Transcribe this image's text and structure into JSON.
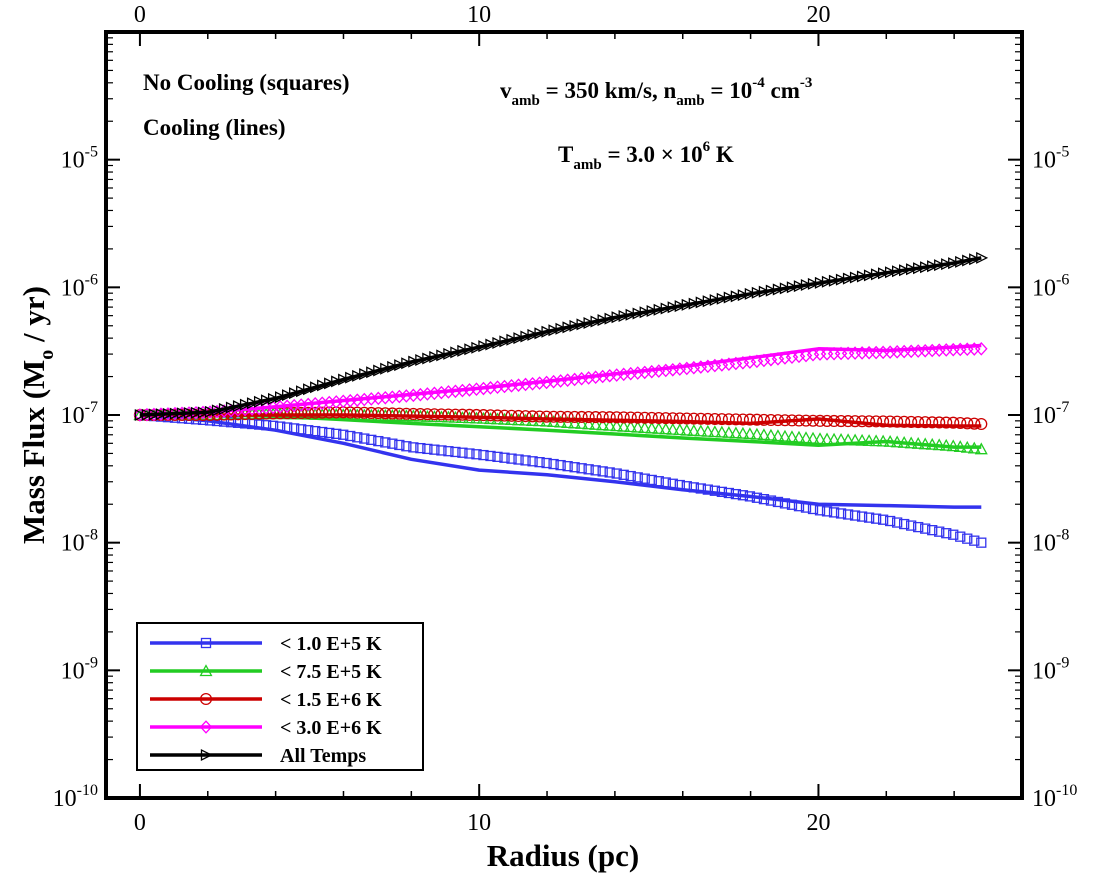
{
  "chart_data": {
    "type": "line",
    "xlabel": "Radius (pc)",
    "ylabel": {
      "pre": "Mass Flux (M",
      "sub": "o",
      "post": " / yr)"
    },
    "xlim": [
      -1,
      26
    ],
    "ylim": [
      1e-10,
      0.0001
    ],
    "yscale": "log",
    "x_ticks": [
      0,
      10,
      20
    ],
    "x_ticks_labels": [
      "0",
      "10",
      "20"
    ],
    "y_tick_base": "10",
    "y_ticks": [
      1e-10,
      1e-09,
      1e-08,
      1e-07,
      1e-06,
      1e-05
    ],
    "y_ticks_exps": [
      "-10",
      "-9",
      "-8",
      "-7",
      "-6",
      "-5"
    ],
    "annotations": {
      "cooling_none": "No Cooling (squares)",
      "cooling_lines": "Cooling (lines)",
      "params": {
        "v": "v",
        "v_sub": "amb",
        "v_val": " = 350 km/s, n",
        "n_sub": "amb",
        "n_val": " = 10",
        "n_exp": "-4",
        "n_unit": " cm",
        "n_unit_exp": "-3"
      },
      "temp": {
        "T": "T",
        "T_sub": "amb",
        "T_val": " = 3.0 × 10",
        "T_exp": "6",
        "T_unit": " K"
      }
    },
    "legend_position": "bottom-left",
    "series": [
      {
        "name": "< 1.0 E+5 K",
        "color": "#3333ee",
        "marker": "square",
        "x": [
          0,
          2,
          4,
          6,
          8,
          10,
          12,
          14,
          16,
          18,
          20,
          22,
          24,
          24.8
        ],
        "markers_y": [
          1e-07,
          9.1e-08,
          8.2e-08,
          7e-08,
          5.6e-08,
          4.9e-08,
          4.2e-08,
          3.5e-08,
          2.8e-08,
          2.3e-08,
          1.8e-08,
          1.5e-08,
          1.15e-08,
          1e-08
        ],
        "line_y": [
          1e-07,
          9e-08,
          7.6e-08,
          6e-08,
          4.5e-08,
          3.7e-08,
          3.4e-08,
          3e-08,
          2.6e-08,
          2.3e-08,
          2e-08,
          1.95e-08,
          1.9e-08,
          1.9e-08
        ]
      },
      {
        "name": "< 7.5 E+5 K",
        "color": "#22cc22",
        "marker": "triangle",
        "x": [
          0,
          2,
          4,
          6,
          8,
          10,
          12,
          14,
          16,
          18,
          20,
          22,
          24,
          24.8
        ],
        "markers_y": [
          1e-07,
          1e-07,
          1.02e-07,
          1e-07,
          9.8e-08,
          9.4e-08,
          8.9e-08,
          8.2e-08,
          7.6e-08,
          7.1e-08,
          6.5e-08,
          6.2e-08,
          5.7e-08,
          5.4e-08
        ],
        "line_y": [
          1e-07,
          1e-07,
          9.8e-08,
          9.2e-08,
          8.6e-08,
          8.1e-08,
          7.6e-08,
          7.1e-08,
          6.6e-08,
          6.2e-08,
          5.8e-08,
          6.2e-08,
          5.6e-08,
          5.6e-08
        ]
      },
      {
        "name": "< 1.5 E+6 K",
        "color": "#cc0000",
        "marker": "circle",
        "x": [
          0,
          2,
          4,
          6,
          8,
          10,
          12,
          14,
          16,
          18,
          20,
          22,
          24,
          24.8
        ],
        "markers_y": [
          1e-07,
          1e-07,
          1.03e-07,
          1.05e-07,
          1.02e-07,
          1e-07,
          9.7e-08,
          9.6e-08,
          9.4e-08,
          9.2e-08,
          9e-08,
          8.9e-08,
          8.7e-08,
          8.5e-08
        ],
        "line_y": [
          1e-07,
          1e-07,
          1e-07,
          1e-07,
          9.8e-08,
          9.6e-08,
          9.3e-08,
          9.1e-08,
          8.9e-08,
          8.6e-08,
          9.3e-08,
          8.3e-08,
          8.2e-08,
          8.2e-08
        ]
      },
      {
        "name": "< 3.0 E+6 K",
        "color": "#ff00ff",
        "marker": "diamond",
        "x": [
          0,
          2,
          4,
          6,
          8,
          10,
          12,
          14,
          16,
          18,
          20,
          22,
          24,
          24.8
        ],
        "markers_y": [
          1e-07,
          1.05e-07,
          1.15e-07,
          1.28e-07,
          1.42e-07,
          1.6e-07,
          1.8e-07,
          2.05e-07,
          2.3e-07,
          2.6e-07,
          3e-07,
          3.1e-07,
          3.25e-07,
          3.3e-07
        ],
        "line_y": [
          1e-07,
          1.05e-07,
          1.16e-07,
          1.3e-07,
          1.45e-07,
          1.62e-07,
          1.84e-07,
          2.1e-07,
          2.4e-07,
          2.8e-07,
          3.3e-07,
          3.2e-07,
          3.4e-07,
          3.5e-07
        ]
      },
      {
        "name": "All Temps",
        "color": "#000000",
        "marker": "triangle-right",
        "x": [
          0,
          2,
          4,
          6,
          8,
          10,
          12,
          14,
          16,
          18,
          20,
          22,
          24,
          24.8
        ],
        "markers_y": [
          1e-07,
          1.05e-07,
          1.35e-07,
          1.9e-07,
          2.6e-07,
          3.4e-07,
          4.5e-07,
          5.8e-07,
          7.2e-07,
          8.9e-07,
          1.08e-06,
          1.3e-06,
          1.55e-06,
          1.7e-06
        ],
        "line_y": [
          1e-07,
          1.05e-07,
          1.35e-07,
          1.9e-07,
          2.6e-07,
          3.4e-07,
          4.5e-07,
          5.8e-07,
          7.2e-07,
          8.9e-07,
          1.08e-06,
          1.3e-06,
          1.55e-06,
          1.7e-06
        ]
      }
    ]
  }
}
